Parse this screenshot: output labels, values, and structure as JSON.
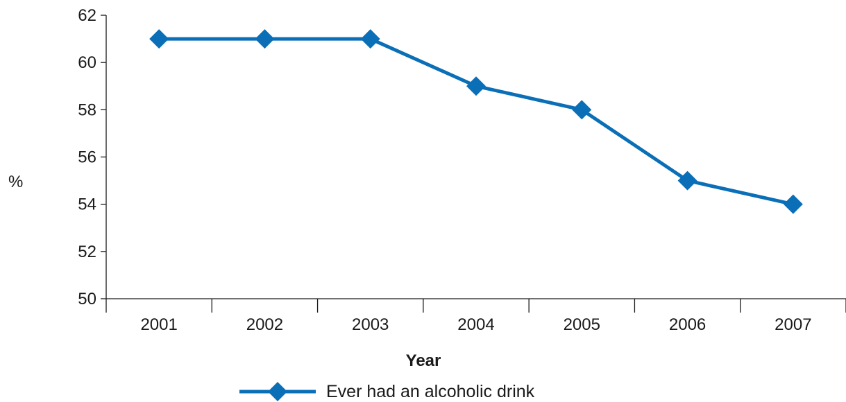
{
  "chart_data": {
    "type": "line",
    "title": "",
    "xlabel": "Year",
    "ylabel": "%",
    "categories": [
      "2001",
      "2002",
      "2003",
      "2004",
      "2005",
      "2006",
      "2007"
    ],
    "series": [
      {
        "name": "Ever had an alcoholic drink",
        "values": [
          61,
          61,
          61,
          59,
          58,
          55,
          54
        ],
        "color": "#0a6fb7",
        "marker": "diamond"
      }
    ],
    "ylim": [
      50,
      62
    ],
    "yticks": [
      "50",
      "52",
      "54",
      "56",
      "58",
      "60",
      "62"
    ],
    "grid": false,
    "legend_position": "bottom"
  }
}
